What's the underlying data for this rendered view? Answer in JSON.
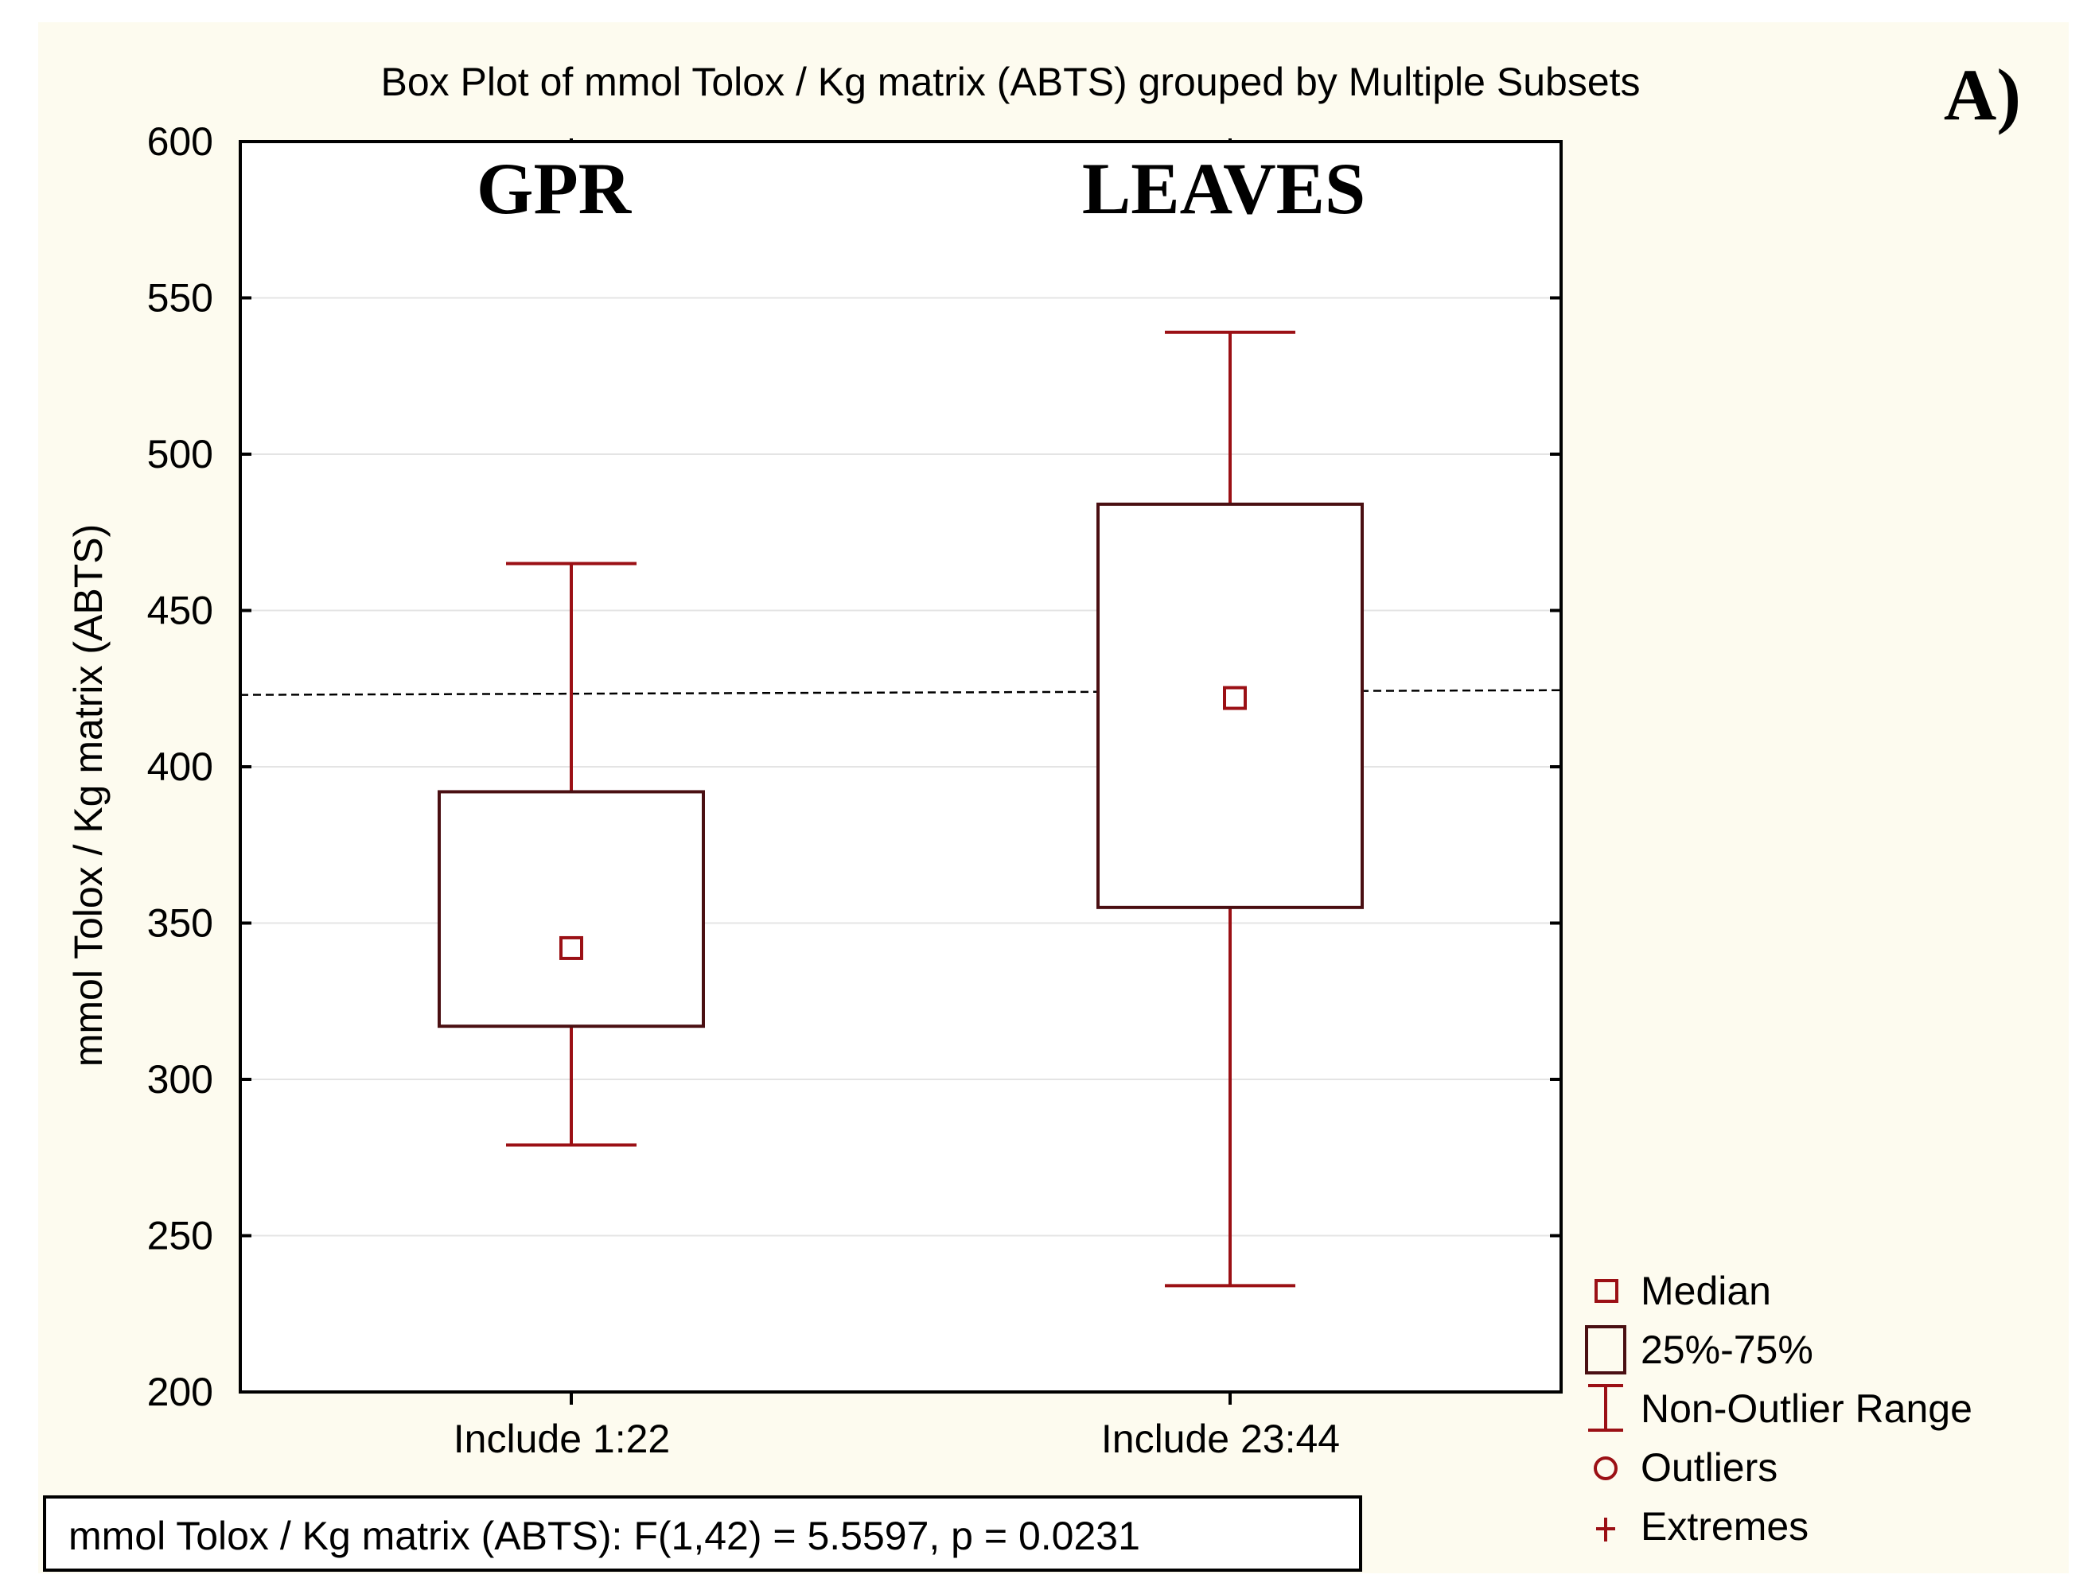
{
  "colors": {
    "background": "#ffffff",
    "panel": "#fdfbef",
    "box_stroke": "#4a0f12",
    "whisker": "#9b1015",
    "axis": "#000000",
    "grid": "#e4e4e4"
  },
  "chart_data": {
    "type": "box",
    "title": "Box Plot of mmol Tolox / Kg matrix (ABTS) grouped by  Multiple Subsets",
    "panel_label": "A)",
    "ylabel": "mmol Tolox / Kg matrix (ABTS)",
    "ylim": [
      200,
      600
    ],
    "yticks": [
      "200",
      "250",
      "300",
      "350",
      "400",
      "450",
      "500",
      "550",
      "600"
    ],
    "ytick_values": [
      200,
      250,
      300,
      350,
      400,
      450,
      500,
      550,
      600
    ],
    "reference_line": [
      423,
      424.5
    ],
    "groups": [
      {
        "name": "GPR",
        "tick_label": "Include 1:22",
        "median": 342,
        "q1": 317,
        "q3": 392,
        "whisker_low": 279,
        "whisker_high": 465
      },
      {
        "name": "LEAVES",
        "tick_label": "Include 23:44",
        "median": 422,
        "q1": 355,
        "q3": 484,
        "whisker_low": 234,
        "whisker_high": 539
      }
    ],
    "legend": [
      {
        "symbol": "median",
        "label": "Median"
      },
      {
        "symbol": "box",
        "label": "25%-75%"
      },
      {
        "symbol": "whisker",
        "label": "Non-Outlier Range"
      },
      {
        "symbol": "outlier",
        "label": "Outliers"
      },
      {
        "symbol": "extreme",
        "label": "Extremes"
      }
    ],
    "stats": "mmol Tolox / Kg matrix (ABTS):   F(1,42) = 5.5597, p = 0.0231"
  }
}
